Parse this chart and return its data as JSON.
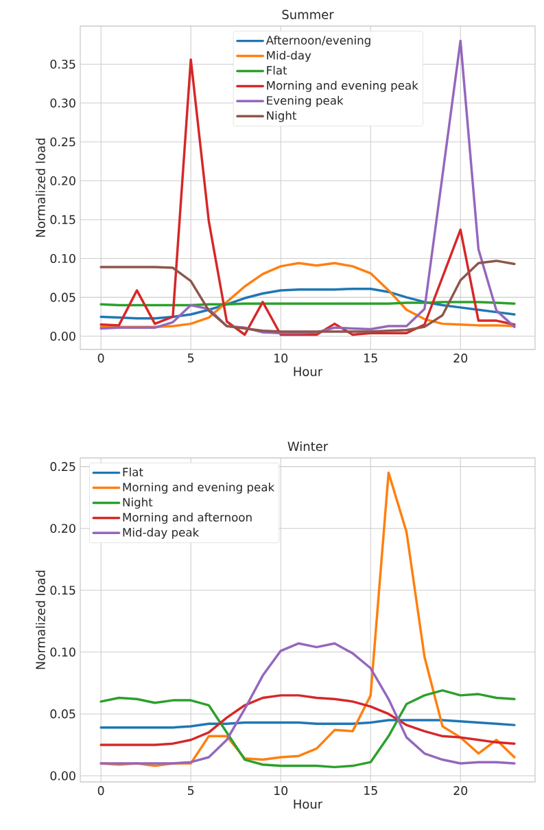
{
  "chart_data": [
    {
      "type": "line",
      "title": "Summer",
      "xlabel": "Hour",
      "ylabel": "Normalized load",
      "x": [
        0,
        1,
        2,
        3,
        4,
        5,
        6,
        7,
        8,
        9,
        10,
        11,
        12,
        13,
        14,
        15,
        16,
        17,
        18,
        19,
        20,
        21,
        22,
        23
      ],
      "series": [
        {
          "name": "Afternoon/evening",
          "color": "#1f77b4",
          "values": [
            0.025,
            0.024,
            0.023,
            0.023,
            0.025,
            0.028,
            0.034,
            0.041,
            0.049,
            0.055,
            0.059,
            0.06,
            0.06,
            0.06,
            0.061,
            0.061,
            0.057,
            0.05,
            0.044,
            0.04,
            0.037,
            0.034,
            0.031,
            0.028
          ]
        },
        {
          "name": "Mid-day",
          "color": "#ff7f0e",
          "values": [
            0.012,
            0.012,
            0.012,
            0.012,
            0.013,
            0.016,
            0.024,
            0.044,
            0.064,
            0.08,
            0.09,
            0.094,
            0.091,
            0.094,
            0.09,
            0.081,
            0.059,
            0.034,
            0.022,
            0.016,
            0.015,
            0.014,
            0.014,
            0.013
          ]
        },
        {
          "name": "Flat",
          "color": "#2ca02c",
          "values": [
            0.041,
            0.04,
            0.04,
            0.04,
            0.04,
            0.04,
            0.041,
            0.041,
            0.042,
            0.042,
            0.042,
            0.042,
            0.042,
            0.042,
            0.042,
            0.042,
            0.042,
            0.043,
            0.043,
            0.044,
            0.044,
            0.044,
            0.043,
            0.042
          ]
        },
        {
          "name": "Morning and evening peak",
          "color": "#d62728",
          "values": [
            0.015,
            0.014,
            0.059,
            0.016,
            0.025,
            0.356,
            0.148,
            0.019,
            0.002,
            0.044,
            0.002,
            0.002,
            0.002,
            0.016,
            0.002,
            0.004,
            0.004,
            0.004,
            0.015,
            0.076,
            0.137,
            0.02,
            0.02,
            0.015
          ]
        },
        {
          "name": "Evening peak",
          "color": "#9467bd",
          "values": [
            0.01,
            0.011,
            0.011,
            0.011,
            0.018,
            0.04,
            0.035,
            0.013,
            0.011,
            0.005,
            0.004,
            0.004,
            0.005,
            0.011,
            0.01,
            0.009,
            0.013,
            0.013,
            0.035,
            0.207,
            0.38,
            0.112,
            0.033,
            0.012
          ]
        },
        {
          "name": "Night",
          "color": "#8c564b",
          "values": [
            0.089,
            0.089,
            0.089,
            0.089,
            0.088,
            0.071,
            0.033,
            0.013,
            0.01,
            0.007,
            0.006,
            0.006,
            0.006,
            0.006,
            0.006,
            0.006,
            0.007,
            0.008,
            0.012,
            0.027,
            0.072,
            0.094,
            0.097,
            0.093
          ]
        }
      ],
      "xlim": [
        -1.15,
        24.15
      ],
      "ylim": [
        -0.017,
        0.399
      ],
      "xticks": [
        0,
        5,
        10,
        15,
        20
      ],
      "yticks": [
        {
          "value": 0,
          "label": "0.00"
        },
        {
          "value": 0.05,
          "label": "0.05"
        },
        {
          "value": 0.1,
          "label": "0.10"
        },
        {
          "value": 0.15,
          "label": "0.15"
        },
        {
          "value": 0.2,
          "label": "0.20"
        },
        {
          "value": 0.25,
          "label": "0.25"
        },
        {
          "value": 0.3,
          "label": "0.30"
        },
        {
          "value": 0.35,
          "label": "0.35"
        }
      ],
      "grid": true,
      "legend": "top"
    },
    {
      "type": "line",
      "title": "Winter",
      "xlabel": "Hour",
      "ylabel": "Normalized load",
      "x": [
        0,
        1,
        2,
        3,
        4,
        5,
        6,
        7,
        8,
        9,
        10,
        11,
        12,
        13,
        14,
        15,
        16,
        17,
        18,
        19,
        20,
        21,
        22,
        23
      ],
      "series": [
        {
          "name": "Flat",
          "color": "#1f77b4",
          "values": [
            0.039,
            0.039,
            0.039,
            0.039,
            0.039,
            0.04,
            0.042,
            0.042,
            0.043,
            0.043,
            0.043,
            0.043,
            0.042,
            0.042,
            0.042,
            0.043,
            0.045,
            0.045,
            0.045,
            0.045,
            0.044,
            0.043,
            0.042,
            0.041
          ]
        },
        {
          "name": "Morning and evening peak",
          "color": "#ff7f0e",
          "values": [
            0.01,
            0.009,
            0.01,
            0.008,
            0.01,
            0.01,
            0.032,
            0.032,
            0.014,
            0.013,
            0.015,
            0.016,
            0.022,
            0.037,
            0.036,
            0.065,
            0.245,
            0.197,
            0.096,
            0.04,
            0.031,
            0.018,
            0.029,
            0.015
          ]
        },
        {
          "name": "Night",
          "color": "#2ca02c",
          "values": [
            0.06,
            0.063,
            0.062,
            0.059,
            0.061,
            0.061,
            0.057,
            0.035,
            0.013,
            0.009,
            0.008,
            0.008,
            0.008,
            0.007,
            0.008,
            0.011,
            0.032,
            0.058,
            0.065,
            0.069,
            0.065,
            0.066,
            0.063,
            0.062
          ]
        },
        {
          "name": "Morning and afternoon",
          "color": "#d62728",
          "values": [
            0.025,
            0.025,
            0.025,
            0.025,
            0.026,
            0.029,
            0.035,
            0.047,
            0.057,
            0.063,
            0.065,
            0.065,
            0.063,
            0.062,
            0.06,
            0.056,
            0.05,
            0.041,
            0.036,
            0.032,
            0.031,
            0.029,
            0.027,
            0.026
          ]
        },
        {
          "name": "Mid-day peak",
          "color": "#9467bd",
          "values": [
            0.01,
            0.01,
            0.01,
            0.01,
            0.01,
            0.011,
            0.015,
            0.029,
            0.054,
            0.081,
            0.101,
            0.107,
            0.104,
            0.107,
            0.099,
            0.087,
            0.062,
            0.031,
            0.018,
            0.013,
            0.01,
            0.011,
            0.011,
            0.01
          ]
        }
      ],
      "xlim": [
        -1.15,
        24.15
      ],
      "ylim": [
        -0.005,
        0.257
      ],
      "xticks": [
        0,
        5,
        10,
        15,
        20
      ],
      "yticks": [
        {
          "value": 0,
          "label": "0.00"
        },
        {
          "value": 0.05,
          "label": "0.05"
        },
        {
          "value": 0.1,
          "label": "0.10"
        },
        {
          "value": 0.15,
          "label": "0.15"
        },
        {
          "value": 0.2,
          "label": "0.20"
        },
        {
          "value": 0.25,
          "label": "0.25"
        }
      ],
      "grid": true,
      "legend": "top left"
    }
  ]
}
